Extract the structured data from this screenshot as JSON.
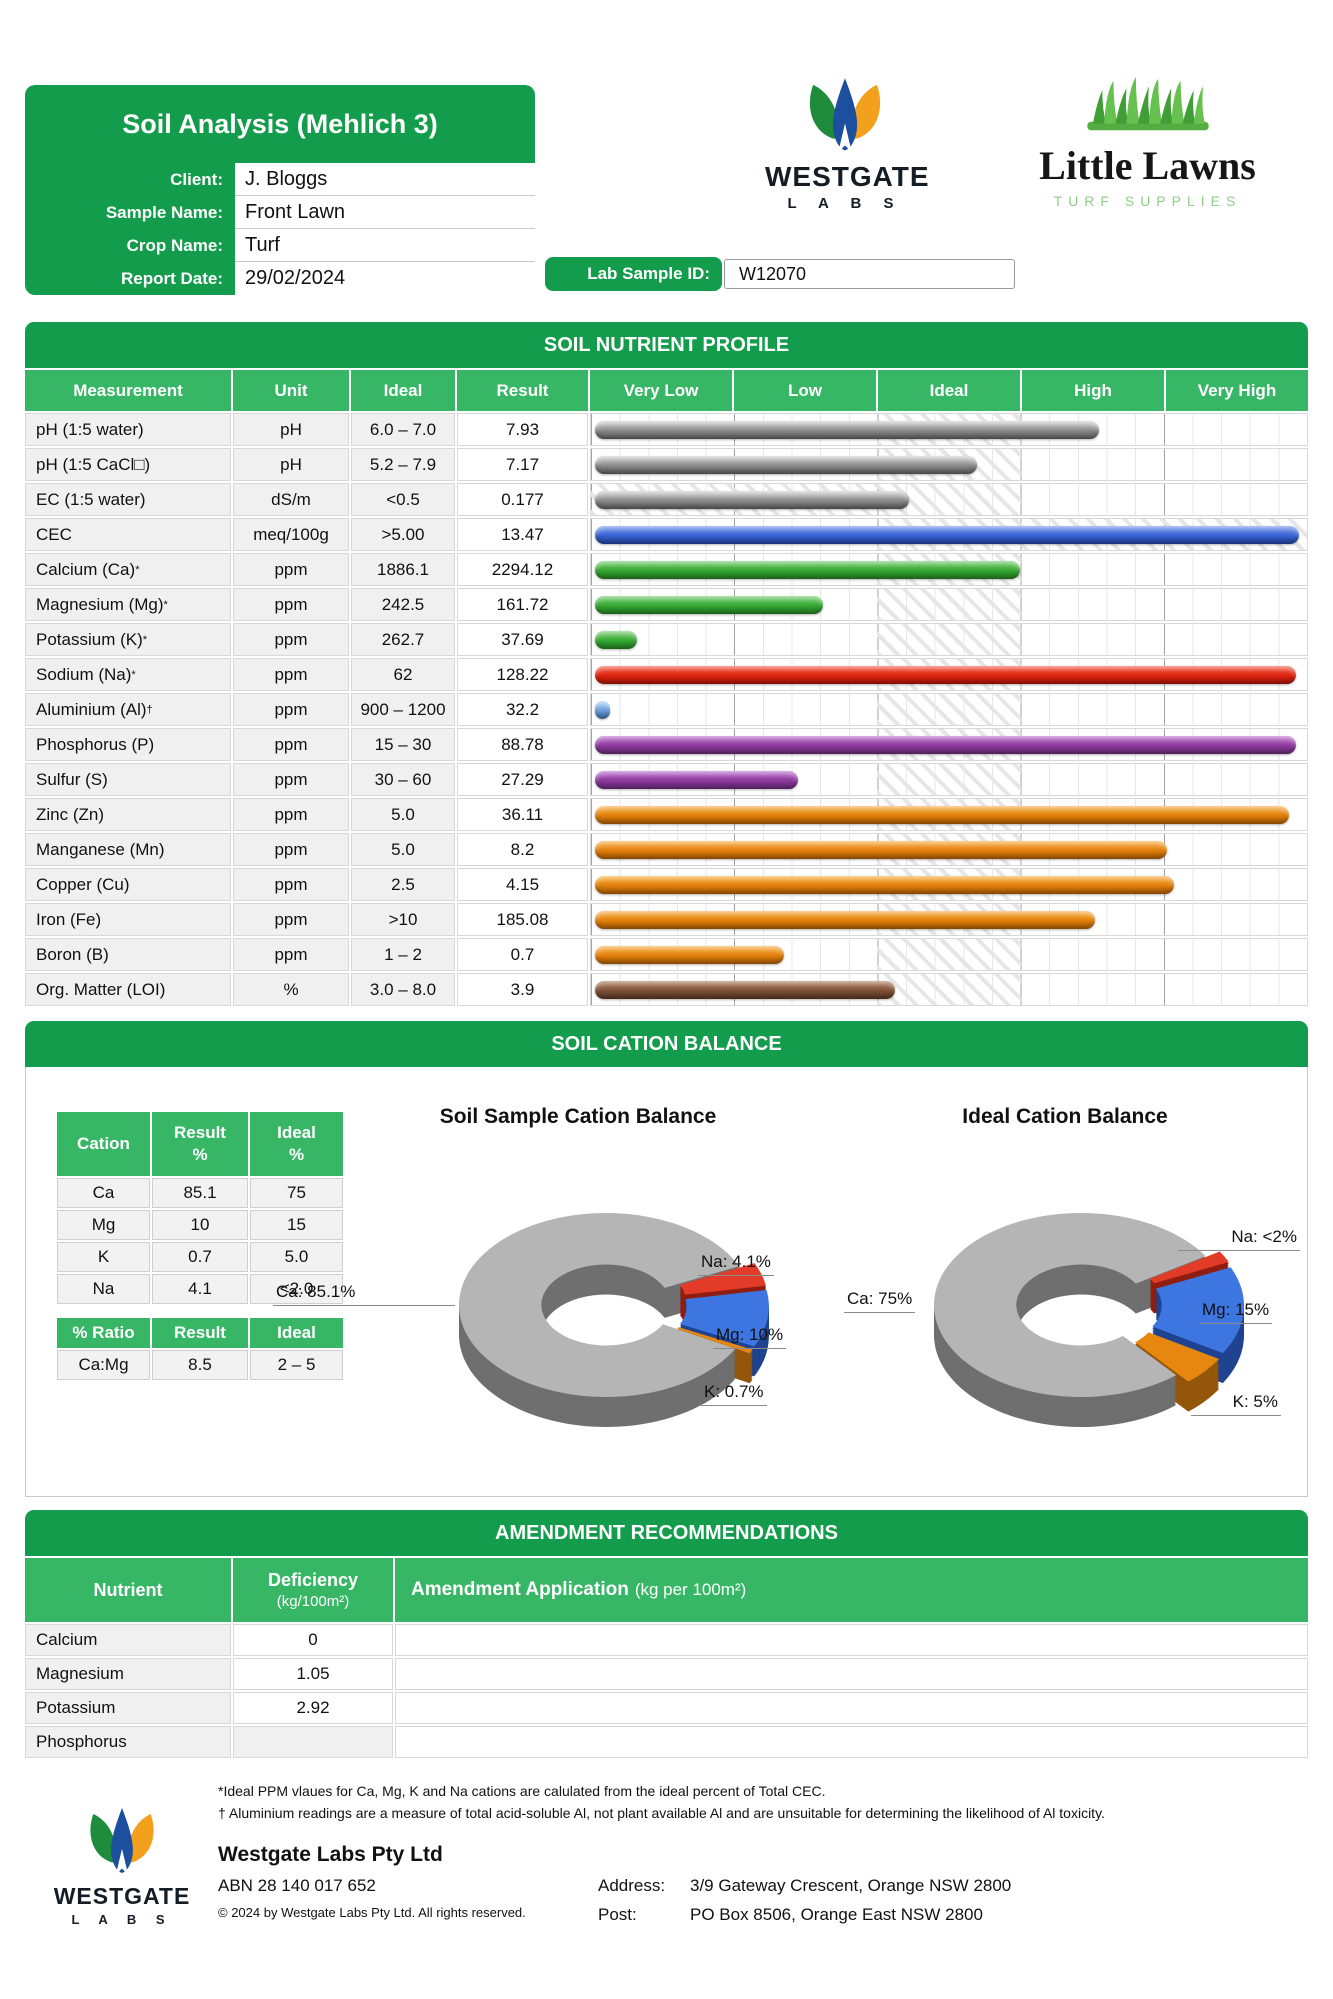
{
  "header": {
    "title": "Soil Analysis (Mehlich 3)",
    "fields": [
      {
        "label": "Client:",
        "value": "J. Bloggs"
      },
      {
        "label": "Sample Name:",
        "value": "Front Lawn"
      },
      {
        "label": "Crop Name:",
        "value": "Turf"
      },
      {
        "label": "Report Date:",
        "value": "29/02/2024"
      }
    ],
    "lab_sample": {
      "label": "Lab Sample ID:",
      "value": "W12070"
    },
    "westgate_logo": {
      "name": "WESTGATE",
      "sub": "L A B S"
    },
    "little_lawns_logo": {
      "name": "Little Lawns",
      "sub": "TURF SUPPLIES"
    }
  },
  "nutrient_profile": {
    "section_title": "SOIL NUTRIENT PROFILE",
    "table_headers": [
      "Measurement",
      "Unit",
      "Ideal",
      "Result"
    ],
    "scale_headers": [
      "Very Low",
      "Low",
      "Ideal",
      "High",
      "Very High"
    ],
    "palette": {
      "gray": [
        "#c6c6c6",
        "#8a8a8a",
        "#5e5e5e"
      ],
      "blue": [
        "#5b83e8",
        "#3a63d2",
        "#22419c"
      ],
      "green": [
        "#5ec253",
        "#35a832",
        "#237f21"
      ],
      "red": [
        "#f0442c",
        "#dd2410",
        "#a81404"
      ],
      "lightblue": [
        "#9cc1ee",
        "#699ddb",
        "#3f6fae"
      ],
      "purple": [
        "#b058c2",
        "#8d3a9e",
        "#672a75"
      ],
      "orange": [
        "#f5a02a",
        "#e2800a",
        "#ad5c05"
      ],
      "brown": [
        "#a06c48",
        "#7d5138",
        "#583622"
      ]
    },
    "rows": [
      {
        "measurement": "pH (1:5 water)",
        "sup": "",
        "unit": "pH",
        "ideal": "6.0 – 7.0",
        "result": "7.93",
        "bar_pct": 71.5,
        "color": "gray",
        "band": "mid"
      },
      {
        "measurement": "pH (1:5 CaCl□)",
        "sup": "",
        "unit": "pH",
        "ideal": "5.2 – 7.9",
        "result": "7.17",
        "bar_pct": 54.5,
        "color": "gray",
        "band": "mid"
      },
      {
        "measurement": "EC (1:5 water)",
        "sup": "",
        "unit": "dS/m",
        "ideal": "<0.5",
        "result": "0.177",
        "bar_pct": 45,
        "color": "gray",
        "band": "low"
      },
      {
        "measurement": "CEC",
        "sup": "",
        "unit": "meq/100g",
        "ideal": ">5.00",
        "result": "13.47",
        "bar_pct": 99.5,
        "color": "blue",
        "band": "high"
      },
      {
        "measurement": "Calcium (Ca)",
        "sup": "*",
        "unit": "ppm",
        "ideal": "1886.1",
        "result": "2294.12",
        "bar_pct": 60.5,
        "color": "green",
        "band": "mid"
      },
      {
        "measurement": "Magnesium (Mg)",
        "sup": "*",
        "unit": "ppm",
        "ideal": "242.5",
        "result": "161.72",
        "bar_pct": 33,
        "color": "green",
        "band": "mid"
      },
      {
        "measurement": "Potassium (K)",
        "sup": "*",
        "unit": "ppm",
        "ideal": "262.7",
        "result": "37.69",
        "bar_pct": 7,
        "color": "green",
        "band": "mid"
      },
      {
        "measurement": "Sodium (Na)",
        "sup": "*",
        "unit": "ppm",
        "ideal": "62",
        "result": "128.22",
        "bar_pct": 99,
        "color": "red",
        "band": "mid"
      },
      {
        "measurement": "Aluminium (Al)",
        "sup": "†",
        "unit": "ppm",
        "ideal": "900 – 1200",
        "result": "32.2",
        "bar_pct": 3.2,
        "color": "lightblue",
        "band": "mid"
      },
      {
        "measurement": "Phosphorus (P)",
        "sup": "",
        "unit": "ppm",
        "ideal": "15 – 30",
        "result": "88.78",
        "bar_pct": 99,
        "color": "purple",
        "band": "mid"
      },
      {
        "measurement": "Sulfur (S)",
        "sup": "",
        "unit": "ppm",
        "ideal": "30 – 60",
        "result": "27.29",
        "bar_pct": 29.5,
        "color": "purple",
        "band": "mid"
      },
      {
        "measurement": "Zinc (Zn)",
        "sup": "",
        "unit": "ppm",
        "ideal": "5.0",
        "result": "36.11",
        "bar_pct": 98,
        "color": "orange",
        "band": "mid"
      },
      {
        "measurement": "Manganese (Mn)",
        "sup": "",
        "unit": "ppm",
        "ideal": "5.0",
        "result": "8.2",
        "bar_pct": 81,
        "color": "orange",
        "band": "mid"
      },
      {
        "measurement": "Copper (Cu)",
        "sup": "",
        "unit": "ppm",
        "ideal": "2.5",
        "result": "4.15",
        "bar_pct": 82,
        "color": "orange",
        "band": "mid"
      },
      {
        "measurement": "Iron (Fe)",
        "sup": "",
        "unit": "ppm",
        "ideal": ">10",
        "result": "185.08",
        "bar_pct": 71,
        "color": "orange",
        "band": "mid"
      },
      {
        "measurement": "Boron (B)",
        "sup": "",
        "unit": "ppm",
        "ideal": "1 – 2",
        "result": "0.7",
        "bar_pct": 27.5,
        "color": "orange",
        "band": "mid"
      },
      {
        "measurement": "Org. Matter (LOI)",
        "sup": "",
        "unit": "%",
        "ideal": "3.0 – 8.0",
        "result": "3.9",
        "bar_pct": 43,
        "color": "brown",
        "band": "mid"
      }
    ]
  },
  "cation_balance": {
    "section_title": "SOIL CATION BALANCE",
    "table": {
      "headers": [
        "Cation",
        "Result\n%",
        "Ideal\n%"
      ],
      "rows": [
        [
          "Ca",
          "85.1",
          "75"
        ],
        [
          "Mg",
          "10",
          "15"
        ],
        [
          "K",
          "0.7",
          "5.0"
        ],
        [
          "Na",
          "4.1",
          "<2.0"
        ]
      ]
    },
    "ratio_table": {
      "headers": [
        "% Ratio",
        "Result",
        "Ideal"
      ],
      "rows": [
        [
          "Ca:Mg",
          "8.5",
          "2 – 5"
        ]
      ]
    },
    "sample_chart": {
      "title": "Soil Sample Cation Balance",
      "labels": {
        "ca": "Ca: 85.1%",
        "na": "Na: 4.1%",
        "mg": "Mg: 10%",
        "k": "K: 0.7%"
      }
    },
    "ideal_chart": {
      "title": "Ideal Cation Balance",
      "labels": {
        "ca": "Ca: 75%",
        "na": "Na: <2%",
        "mg": "Mg: 15%",
        "k": "K: 5%"
      }
    },
    "slice_colors": {
      "na": [
        "#e23b27",
        "#8f1d10"
      ],
      "mg": [
        "#3d76e0",
        "#1f4390"
      ],
      "k": [
        "#e8870f",
        "#93560a"
      ],
      "ca": [
        "#b5b5b5",
        "#6f6f6f"
      ]
    }
  },
  "amendments": {
    "section_title": "AMENDMENT RECOMMENDATIONS",
    "col_nutrient": "Nutrient",
    "col_deficiency": "Deficiency",
    "col_deficiency_sub": "(kg/100m²)",
    "col_application": "Amendment Application",
    "col_application_sub": "(kg per 100m²)",
    "rows": [
      [
        "Calcium",
        "0"
      ],
      [
        "Magnesium",
        "1.05"
      ],
      [
        "Potassium",
        "2.92"
      ],
      [
        "Phosphorus",
        ""
      ]
    ]
  },
  "footnotes": [
    "*Ideal PPM vlaues for Ca, Mg, K and Na cations are calulated from the ideal percent of Total CEC.",
    "† Aluminium readings are a measure of total acid-soluble Al, not plant available Al and are unsuitable for determining the likelihood of Al toxicity."
  ],
  "footer": {
    "company": "Westgate Labs Pty Ltd",
    "abn": "ABN 28 140 017 652",
    "copyright": "© 2024 by Westgate Labs Pty Ltd. All rights reserved.",
    "address_label": "Address:",
    "address": "3/9 Gateway Crescent, Orange NSW 2800",
    "post_label": "Post:",
    "post": "PO Box 8506, Orange East NSW 2800",
    "logo": {
      "name": "WESTGATE",
      "sub": "L A B S"
    }
  },
  "brand": {
    "green_dark": "#129c4b",
    "green_mid": "#37b766"
  },
  "chart_data": [
    {
      "type": "bar",
      "title": "SOIL NUTRIENT PROFILE",
      "categories": [
        "pH (1:5 water)",
        "pH (1:5 CaCl2)",
        "EC (1:5 water)",
        "CEC",
        "Calcium (Ca)",
        "Magnesium (Mg)",
        "Potassium (K)",
        "Sodium (Na)",
        "Aluminium (Al)",
        "Phosphorus (P)",
        "Sulfur (S)",
        "Zinc (Zn)",
        "Manganese (Mn)",
        "Copper (Cu)",
        "Iron (Fe)",
        "Boron (B)",
        "Org. Matter (LOI)"
      ],
      "values": [
        7.93,
        7.17,
        0.177,
        13.47,
        2294.12,
        161.72,
        37.69,
        128.22,
        32.2,
        88.78,
        27.29,
        36.11,
        8.2,
        4.15,
        185.08,
        0.7,
        3.9
      ],
      "units": [
        "pH",
        "pH",
        "dS/m",
        "meq/100g",
        "ppm",
        "ppm",
        "ppm",
        "ppm",
        "ppm",
        "ppm",
        "ppm",
        "ppm",
        "ppm",
        "ppm",
        "ppm",
        "ppm",
        "%"
      ],
      "ideal": [
        "6.0 – 7.0",
        "5.2 – 7.9",
        "<0.5",
        ">5.00",
        "1886.1",
        "242.5",
        "262.7",
        "62",
        "900 – 1200",
        "15 – 30",
        "30 – 60",
        "5.0",
        "5.0",
        "2.5",
        ">10",
        "1 – 2",
        "3.0 – 8.0"
      ],
      "xlabel": "",
      "ylabel": "",
      "scale_labels": [
        "Very Low",
        "Low",
        "Ideal",
        "High",
        "Very High"
      ]
    },
    {
      "type": "pie",
      "title": "Soil Sample Cation Balance",
      "labels": [
        "Na",
        "Mg",
        "K",
        "Ca"
      ],
      "values": [
        4.1,
        10,
        0.7,
        85.1
      ],
      "colors": [
        "na",
        "mg",
        "k",
        "ca"
      ],
      "start_angle": 65
    },
    {
      "type": "pie",
      "title": "Ideal Cation Balance",
      "labels": [
        "Na",
        "Mg",
        "K",
        "Ca"
      ],
      "values": [
        2,
        15,
        5,
        75
      ],
      "colors": [
        "na",
        "mg",
        "k",
        "ca"
      ],
      "start_angle": 58
    }
  ]
}
